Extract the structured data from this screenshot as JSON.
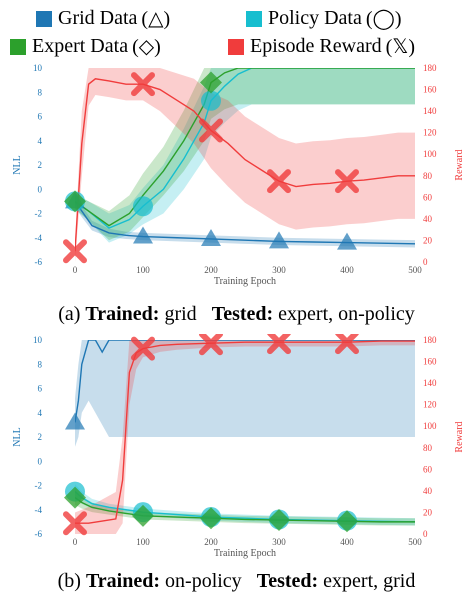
{
  "legend": {
    "items": [
      {
        "label": "Grid Data",
        "symbol": "(△)",
        "color": "#1f77b4"
      },
      {
        "label": "Policy Data",
        "symbol": "(◯)",
        "color": "#17becf"
      },
      {
        "label": "Expert Data",
        "symbol": "(◇)",
        "color": "#2ca02c"
      },
      {
        "label": "Episode Reward",
        "symbol": "(𝕏)",
        "color": "#f03c3c"
      }
    ]
  },
  "captions": [
    {
      "prefix": "(a) ",
      "trained_label": "Trained:",
      "trained_value": "grid",
      "tested_label": "Tested:",
      "tested_value": "expert, on-policy"
    },
    {
      "prefix": "(b) ",
      "trained_label": "Trained:",
      "trained_value": "on-policy",
      "tested_label": "Tested:",
      "tested_value": "expert, grid"
    }
  ],
  "chart_data": [
    {
      "type": "line",
      "xlabel": "Training Epoch",
      "ylabel": "NLL",
      "y2label": "Reward",
      "xlim": [
        0,
        500
      ],
      "ylim": [
        -6,
        10
      ],
      "y2lim": [
        0,
        180
      ],
      "xticks": [
        0,
        100,
        200,
        300,
        400,
        500
      ],
      "yticks": [
        -6,
        -4,
        -2,
        0,
        2,
        4,
        6,
        8,
        10
      ],
      "y2ticks": [
        0,
        20,
        40,
        60,
        80,
        100,
        120,
        140,
        160,
        180
      ],
      "series": [
        {
          "axis": "left",
          "color": "#1f77b4",
          "marker": "triangle",
          "x": [
            0,
            10,
            25,
            50,
            75,
            100,
            150,
            200,
            250,
            300,
            350,
            400,
            450,
            500
          ],
          "y": [
            -1.0,
            -1.8,
            -3.0,
            -3.6,
            -3.8,
            -3.9,
            -4.0,
            -4.1,
            -4.2,
            -4.3,
            -4.35,
            -4.4,
            -4.45,
            -4.5
          ],
          "band": [
            0.5,
            0.5,
            0.4,
            0.35,
            0.3,
            0.3,
            0.3,
            0.3,
            0.3,
            0.3,
            0.3,
            0.3,
            0.3,
            0.3
          ],
          "markers_x": [
            0,
            100,
            200,
            300,
            400
          ],
          "markers_y": [
            -1.0,
            -3.9,
            -4.1,
            -4.3,
            -4.4
          ]
        },
        {
          "axis": "left",
          "color": "#17becf",
          "marker": "circle",
          "x": [
            0,
            20,
            50,
            80,
            100,
            130,
            160,
            190,
            200,
            220,
            240,
            260,
            280,
            300,
            350,
            400,
            450,
            500
          ],
          "y": [
            -1.0,
            -1.8,
            -3.2,
            -2.5,
            -1.4,
            0.0,
            2.5,
            5.5,
            7.3,
            8.5,
            9.5,
            10.0,
            10.0,
            10.0,
            10.0,
            10.0,
            10.0,
            10.0
          ],
          "band": [
            0.6,
            0.8,
            1.2,
            1.2,
            1.5,
            2.0,
            2.5,
            3.0,
            3.0,
            3.0,
            3.0,
            3.0,
            3.0,
            3.0,
            3.0,
            3.0,
            3.0,
            3.0
          ],
          "markers_x": [
            0,
            100,
            200
          ],
          "markers_y": [
            -1.0,
            -1.4,
            7.3
          ]
        },
        {
          "axis": "left",
          "color": "#2ca02c",
          "marker": "diamond",
          "x": [
            0,
            20,
            50,
            80,
            100,
            130,
            160,
            190,
            200,
            220,
            240,
            260,
            280,
            300,
            350,
            400,
            450,
            500
          ],
          "y": [
            -1.0,
            -1.8,
            -3.0,
            -2.0,
            -0.5,
            1.5,
            4.0,
            7.0,
            8.8,
            9.6,
            10.0,
            10.0,
            10.0,
            10.0,
            10.0,
            10.0,
            10.0,
            10.0
          ],
          "band": [
            0.6,
            0.8,
            1.2,
            1.5,
            1.8,
            2.0,
            2.5,
            3.0,
            3.0,
            3.0,
            3.0,
            3.0,
            3.0,
            3.0,
            3.0,
            3.0,
            3.0,
            3.0
          ],
          "markers_x": [
            0,
            200
          ],
          "markers_y": [
            -1.0,
            8.8
          ]
        },
        {
          "axis": "right",
          "color": "#f03c3c",
          "marker": "x",
          "x": [
            0,
            10,
            20,
            30,
            50,
            75,
            100,
            125,
            150,
            175,
            200,
            225,
            250,
            275,
            300,
            325,
            350,
            375,
            400,
            425,
            450,
            475,
            500
          ],
          "y": [
            10,
            110,
            165,
            170,
            168,
            165,
            165,
            160,
            150,
            140,
            122,
            110,
            95,
            85,
            75,
            70,
            72,
            73,
            75,
            76,
            78,
            80,
            80
          ],
          "band": [
            10,
            30,
            20,
            15,
            15,
            15,
            15,
            20,
            25,
            30,
            35,
            40,
            40,
            40,
            40,
            40,
            40,
            40,
            40,
            40,
            40,
            40,
            40
          ],
          "markers_x": [
            0,
            100,
            200,
            300,
            400
          ],
          "markers_y": [
            10,
            165,
            122,
            75,
            75
          ]
        }
      ]
    },
    {
      "type": "line",
      "xlabel": "Training Epoch",
      "ylabel": "NLL",
      "y2label": "Reward",
      "xlim": [
        0,
        500
      ],
      "ylim": [
        -6,
        10
      ],
      "y2lim": [
        0,
        180
      ],
      "xticks": [
        0,
        100,
        200,
        300,
        400,
        500
      ],
      "yticks": [
        -6,
        -4,
        -2,
        0,
        2,
        4,
        6,
        8,
        10
      ],
      "y2ticks": [
        0,
        20,
        40,
        60,
        80,
        100,
        120,
        140,
        160,
        180
      ],
      "series": [
        {
          "axis": "left",
          "color": "#1f77b4",
          "marker": "triangle",
          "x": [
            0,
            5,
            10,
            20,
            30,
            40,
            50,
            75,
            100,
            150,
            200,
            250,
            300,
            350,
            400,
            450,
            500
          ],
          "y": [
            3.2,
            5.0,
            8.0,
            10.0,
            10.0,
            9.0,
            10.0,
            10.0,
            10.0,
            10.0,
            10.0,
            10.0,
            10.0,
            10.0,
            10.0,
            10.0,
            10.0
          ],
          "band": [
            2.0,
            3.0,
            4.0,
            5.0,
            6.0,
            6.0,
            8.0,
            8.0,
            8.0,
            8.0,
            8.0,
            8.0,
            8.0,
            8.0,
            8.0,
            8.0,
            8.0
          ],
          "markers_x": [
            0
          ],
          "markers_y": [
            3.2
          ]
        },
        {
          "axis": "left",
          "color": "#17becf",
          "marker": "circle",
          "x": [
            0,
            10,
            25,
            50,
            75,
            100,
            150,
            200,
            250,
            300,
            350,
            400,
            450,
            500
          ],
          "y": [
            -2.5,
            -3.0,
            -3.5,
            -3.8,
            -4.0,
            -4.2,
            -4.4,
            -4.6,
            -4.7,
            -4.8,
            -4.85,
            -4.9,
            -4.95,
            -5.0
          ],
          "band": [
            0.6,
            0.5,
            0.4,
            0.3,
            0.3,
            0.3,
            0.3,
            0.3,
            0.3,
            0.3,
            0.3,
            0.3,
            0.3,
            0.3
          ],
          "markers_x": [
            0,
            100,
            200,
            300,
            400
          ],
          "markers_y": [
            -2.5,
            -4.2,
            -4.6,
            -4.8,
            -4.9
          ]
        },
        {
          "axis": "left",
          "color": "#2ca02c",
          "marker": "diamond",
          "x": [
            0,
            10,
            25,
            50,
            75,
            100,
            150,
            200,
            250,
            300,
            350,
            400,
            450,
            500
          ],
          "y": [
            -3.0,
            -3.4,
            -3.8,
            -4.1,
            -4.3,
            -4.5,
            -4.6,
            -4.7,
            -4.8,
            -4.85,
            -4.9,
            -4.95,
            -5.0,
            -5.0
          ],
          "band": [
            0.6,
            0.5,
            0.4,
            0.3,
            0.3,
            0.3,
            0.3,
            0.3,
            0.3,
            0.3,
            0.3,
            0.3,
            0.3,
            0.3
          ],
          "markers_x": [
            0,
            100,
            200,
            300,
            400
          ],
          "markers_y": [
            -3.0,
            -4.5,
            -4.7,
            -4.85,
            -4.95
          ]
        },
        {
          "axis": "right",
          "color": "#f03c3c",
          "marker": "x",
          "x": [
            0,
            20,
            40,
            60,
            70,
            80,
            90,
            100,
            125,
            150,
            200,
            250,
            300,
            350,
            400,
            450,
            500
          ],
          "y": [
            10,
            10,
            12,
            14,
            50,
            150,
            168,
            172,
            175,
            176,
            177,
            178,
            178,
            178,
            178,
            179,
            179
          ],
          "band": [
            10,
            15,
            20,
            25,
            40,
            30,
            15,
            8,
            6,
            5,
            4,
            4,
            4,
            4,
            4,
            4,
            4
          ],
          "markers_x": [
            0,
            100,
            200,
            300,
            400
          ],
          "markers_y": [
            10,
            172,
            177,
            178,
            178
          ]
        }
      ]
    }
  ]
}
